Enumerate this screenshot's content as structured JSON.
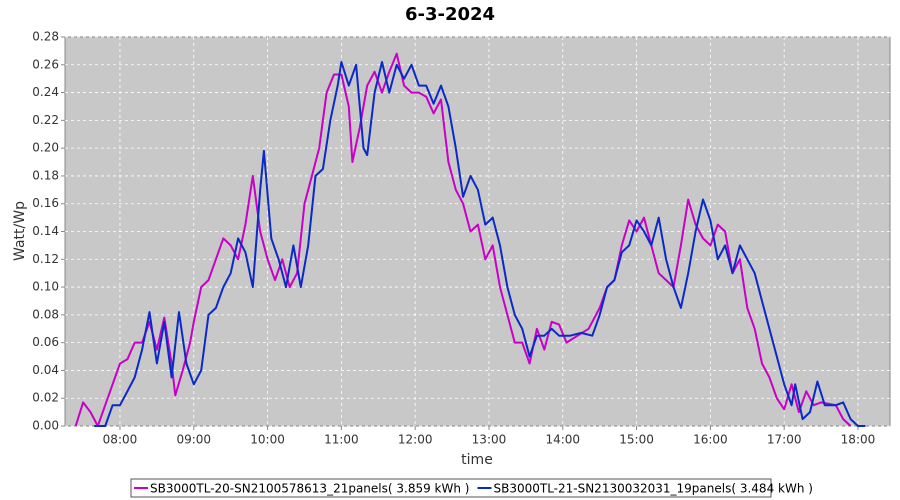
{
  "chart_data": {
    "type": "line",
    "title": "6-3-2024",
    "xlabel": "time",
    "ylabel": "Watt/Wp",
    "xlim": [
      7.255,
      18.434
    ],
    "ylim": [
      0,
      0.28
    ],
    "grid": true,
    "legend": "bottom",
    "xticks": [
      {
        "value": 8,
        "label": "08:00"
      },
      {
        "value": 9,
        "label": "09:00"
      },
      {
        "value": 10,
        "label": "10:00"
      },
      {
        "value": 11,
        "label": "11:00"
      },
      {
        "value": 12,
        "label": "12:00"
      },
      {
        "value": 13,
        "label": "13:00"
      },
      {
        "value": 14,
        "label": "14:00"
      },
      {
        "value": 15,
        "label": "15:00"
      },
      {
        "value": 16,
        "label": "16:00"
      },
      {
        "value": 17,
        "label": "17:00"
      },
      {
        "value": 18,
        "label": "18:00"
      }
    ],
    "yticks": [
      {
        "value": 0,
        "label": "0.00"
      },
      0.02,
      0.04,
      0.06,
      0.08,
      {
        "value": 0.1,
        "label": "0.10"
      },
      0.12,
      0.14,
      0.16,
      0.18,
      {
        "value": 0.2,
        "label": "0.20"
      },
      0.22,
      0.24,
      0.26,
      0.28
    ],
    "series": [
      {
        "name": "SB3000TL-20-SN2100578613_21panels( 3.859 kWh )",
        "color": "#c800c8",
        "x": [
          7.4,
          7.5,
          7.6,
          7.7,
          7.8,
          7.9,
          8.0,
          8.1,
          8.2,
          8.3,
          8.4,
          8.5,
          8.6,
          8.7,
          8.75,
          8.85,
          8.95,
          9.0,
          9.1,
          9.2,
          9.3,
          9.4,
          9.5,
          9.6,
          9.7,
          9.8,
          9.9,
          10.0,
          10.1,
          10.2,
          10.3,
          10.4,
          10.5,
          10.6,
          10.7,
          10.8,
          10.9,
          11.0,
          11.1,
          11.15,
          11.25,
          11.35,
          11.45,
          11.55,
          11.65,
          11.75,
          11.85,
          11.95,
          12.05,
          12.15,
          12.25,
          12.35,
          12.45,
          12.55,
          12.65,
          12.75,
          12.85,
          12.95,
          13.05,
          13.15,
          13.25,
          13.35,
          13.45,
          13.55,
          13.65,
          13.75,
          13.85,
          13.95,
          14.05,
          14.2,
          14.35,
          14.5,
          14.6,
          14.7,
          14.8,
          14.9,
          15.0,
          15.1,
          15.2,
          15.3,
          15.4,
          15.5,
          15.6,
          15.7,
          15.8,
          15.9,
          16.0,
          16.1,
          16.2,
          16.3,
          16.4,
          16.5,
          16.6,
          16.7,
          16.8,
          16.9,
          17.0,
          17.1,
          17.2,
          17.3,
          17.4,
          17.5,
          17.7,
          17.8,
          17.9
        ],
        "values": [
          0,
          0.017,
          0.01,
          0,
          0.015,
          0.03,
          0.045,
          0.048,
          0.06,
          0.06,
          0.075,
          0.055,
          0.078,
          0.045,
          0.022,
          0.04,
          0.06,
          0.075,
          0.1,
          0.105,
          0.12,
          0.135,
          0.13,
          0.12,
          0.145,
          0.18,
          0.14,
          0.12,
          0.105,
          0.12,
          0.1,
          0.11,
          0.16,
          0.18,
          0.2,
          0.24,
          0.253,
          0.253,
          0.23,
          0.19,
          0.215,
          0.245,
          0.255,
          0.24,
          0.255,
          0.268,
          0.245,
          0.24,
          0.24,
          0.237,
          0.225,
          0.235,
          0.19,
          0.17,
          0.16,
          0.14,
          0.145,
          0.12,
          0.13,
          0.1,
          0.08,
          0.06,
          0.06,
          0.045,
          0.07,
          0.055,
          0.075,
          0.073,
          0.06,
          0.065,
          0.07,
          0.085,
          0.1,
          0.105,
          0.13,
          0.148,
          0.14,
          0.15,
          0.13,
          0.11,
          0.105,
          0.1,
          0.13,
          0.163,
          0.145,
          0.135,
          0.13,
          0.145,
          0.14,
          0.11,
          0.12,
          0.085,
          0.07,
          0.045,
          0.035,
          0.02,
          0.012,
          0.03,
          0.01,
          0.025,
          0.015,
          0.017,
          0.015,
          0.005,
          0
        ]
      },
      {
        "name": "SB3000TL-21-SN2130032031_19panels( 3.484 kWh )",
        "color": "#0a2ac8",
        "x": [
          7.65,
          7.8,
          7.9,
          8.0,
          8.1,
          8.2,
          8.3,
          8.4,
          8.5,
          8.6,
          8.7,
          8.8,
          8.9,
          9.0,
          9.1,
          9.2,
          9.3,
          9.4,
          9.5,
          9.6,
          9.7,
          9.8,
          9.9,
          9.95,
          10.05,
          10.15,
          10.25,
          10.35,
          10.45,
          10.55,
          10.65,
          10.75,
          10.85,
          10.95,
          11.0,
          11.1,
          11.2,
          11.3,
          11.35,
          11.45,
          11.55,
          11.65,
          11.75,
          11.85,
          11.95,
          12.05,
          12.15,
          12.25,
          12.35,
          12.45,
          12.55,
          12.65,
          12.75,
          12.85,
          12.95,
          13.05,
          13.15,
          13.25,
          13.35,
          13.45,
          13.55,
          13.65,
          13.75,
          13.85,
          13.95,
          14.1,
          14.25,
          14.4,
          14.5,
          14.6,
          14.7,
          14.8,
          14.9,
          15.0,
          15.1,
          15.2,
          15.3,
          15.4,
          15.5,
          15.6,
          15.7,
          15.8,
          15.9,
          16.0,
          16.1,
          16.2,
          16.3,
          16.4,
          16.5,
          16.6,
          16.7,
          16.8,
          16.9,
          17.0,
          17.1,
          17.15,
          17.25,
          17.35,
          17.45,
          17.55,
          17.7,
          17.8,
          17.9,
          18.0,
          18.1
        ],
        "values": [
          0,
          0,
          0.015,
          0.015,
          0.025,
          0.035,
          0.055,
          0.082,
          0.045,
          0.075,
          0.035,
          0.082,
          0.045,
          0.03,
          0.04,
          0.08,
          0.085,
          0.1,
          0.11,
          0.135,
          0.125,
          0.1,
          0.17,
          0.198,
          0.135,
          0.12,
          0.1,
          0.13,
          0.1,
          0.13,
          0.18,
          0.185,
          0.22,
          0.245,
          0.262,
          0.245,
          0.26,
          0.2,
          0.195,
          0.24,
          0.262,
          0.24,
          0.26,
          0.25,
          0.26,
          0.245,
          0.245,
          0.232,
          0.245,
          0.23,
          0.2,
          0.165,
          0.18,
          0.17,
          0.145,
          0.15,
          0.13,
          0.1,
          0.08,
          0.07,
          0.05,
          0.065,
          0.065,
          0.07,
          0.065,
          0.065,
          0.067,
          0.065,
          0.08,
          0.1,
          0.105,
          0.125,
          0.13,
          0.148,
          0.14,
          0.13,
          0.15,
          0.12,
          0.1,
          0.085,
          0.11,
          0.14,
          0.163,
          0.148,
          0.12,
          0.13,
          0.11,
          0.13,
          0.12,
          0.11,
          0.09,
          0.07,
          0.05,
          0.03,
          0.015,
          0.03,
          0.005,
          0.01,
          0.032,
          0.015,
          0.015,
          0.017,
          0.005,
          0,
          0
        ]
      }
    ]
  }
}
